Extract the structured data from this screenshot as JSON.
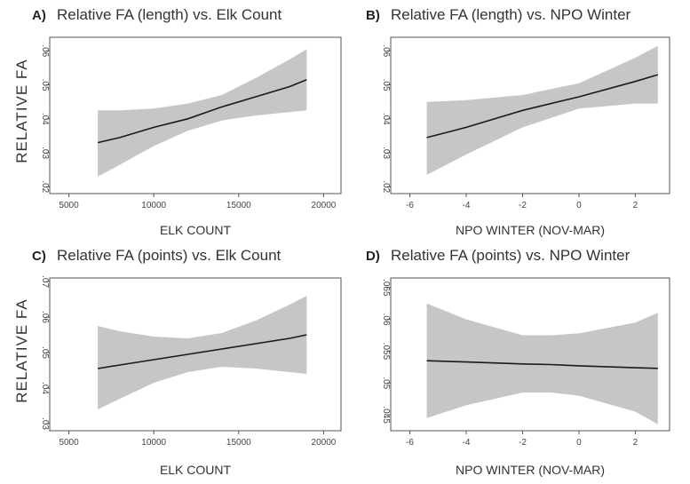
{
  "colors": {
    "band": "#c6c6c6",
    "line": "#1a1a1a",
    "frame": "#555555"
  },
  "y_axis_labels": [
    "RELATIVE   FA",
    "RELATIVE   FA"
  ],
  "chart_data": [
    {
      "type": "line",
      "panel": "A)",
      "title": "Relative FA (length) vs. Elk Count",
      "xlabel": "ELK COUNT",
      "xlim": [
        4500,
        20500
      ],
      "ylim": [
        0.018,
        0.064
      ],
      "xticks": [
        5000,
        10000,
        15000,
        20000
      ],
      "xtick_labels": [
        "5000",
        "10000",
        "15000",
        "20000"
      ],
      "yticks": [
        0.02,
        0.03,
        0.04,
        0.05,
        0.06
      ],
      "ytick_labels": [
        ".02",
        ".03",
        ".04",
        ".05",
        ".06"
      ],
      "series": [
        {
          "x": [
            6700,
            8000,
            10000,
            12000,
            14000,
            16000,
            18000,
            19000
          ],
          "fit": [
            0.033,
            0.0345,
            0.0375,
            0.04,
            0.0435,
            0.0465,
            0.0495,
            0.0515
          ],
          "lower": [
            0.023,
            0.0265,
            0.032,
            0.0365,
            0.0395,
            0.041,
            0.042,
            0.0425
          ],
          "upper": [
            0.0425,
            0.0425,
            0.043,
            0.0445,
            0.047,
            0.052,
            0.0575,
            0.0605
          ]
        }
      ],
      "grid": false
    },
    {
      "type": "line",
      "panel": "B)",
      "title": "Relative FA (length) vs. NPO Winter",
      "xlabel": "NPO WINTER (NOV-MAR)",
      "xlim": [
        -6.3,
        2.9
      ],
      "ylim": [
        0.018,
        0.064
      ],
      "xticks": [
        -6,
        -4,
        -2,
        0,
        2
      ],
      "xtick_labels": [
        "-6",
        "-4",
        "-2",
        "0",
        "2"
      ],
      "yticks": [
        0.02,
        0.03,
        0.04,
        0.05,
        0.06
      ],
      "ytick_labels": [
        ".02",
        ".03",
        ".04",
        ".05",
        ".06"
      ],
      "series": [
        {
          "x": [
            -5.4,
            -4,
            -2,
            0,
            2,
            2.8
          ],
          "fit": [
            0.0345,
            0.0375,
            0.0425,
            0.0465,
            0.051,
            0.053
          ],
          "lower": [
            0.0235,
            0.0295,
            0.0375,
            0.043,
            0.0445,
            0.0445
          ],
          "upper": [
            0.045,
            0.0455,
            0.047,
            0.0505,
            0.058,
            0.0615
          ]
        }
      ],
      "grid": false
    },
    {
      "type": "line",
      "panel": "C)",
      "title": "Relative FA (points) vs. Elk Count",
      "xlabel": "ELK COUNT",
      "xlim": [
        4500,
        20500
      ],
      "ylim": [
        0.028,
        0.071
      ],
      "xticks": [
        5000,
        10000,
        15000,
        20000
      ],
      "xtick_labels": [
        "5000",
        "10000",
        "15000",
        "20000"
      ],
      "yticks": [
        0.03,
        0.04,
        0.05,
        0.06,
        0.07
      ],
      "ytick_labels": [
        ".03",
        ".04",
        ".05",
        ".06",
        ".07"
      ],
      "series": [
        {
          "x": [
            6700,
            8000,
            10000,
            12000,
            14000,
            16000,
            18000,
            19000
          ],
          "fit": [
            0.0455,
            0.0465,
            0.048,
            0.0495,
            0.051,
            0.0525,
            0.054,
            0.055
          ],
          "lower": [
            0.034,
            0.037,
            0.0415,
            0.0445,
            0.046,
            0.0455,
            0.0445,
            0.044
          ],
          "upper": [
            0.0575,
            0.056,
            0.0545,
            0.054,
            0.0555,
            0.059,
            0.0635,
            0.066
          ]
        }
      ],
      "grid": false
    },
    {
      "type": "line",
      "panel": "D)",
      "title": "Relative FA (points) vs. NPO Winter",
      "xlabel": "NPO WINTER (NOV-MAR)",
      "xlim": [
        -6.3,
        2.9
      ],
      "ylim": [
        0.0425,
        0.0665
      ],
      "xticks": [
        -6,
        -4,
        -2,
        0,
        2
      ],
      "xtick_labels": [
        "-6",
        "-4",
        "-2",
        "0",
        "2"
      ],
      "yticks": [
        0.045,
        0.05,
        0.055,
        0.06,
        0.065
      ],
      "ytick_labels": [
        ".045",
        ".05",
        ".055",
        ".06",
        ".065"
      ],
      "series": [
        {
          "x": [
            -5.4,
            -4,
            -2,
            -1,
            0,
            2,
            2.8
          ],
          "fit": [
            0.0535,
            0.0533,
            0.053,
            0.0529,
            0.0527,
            0.0524,
            0.0523
          ],
          "lower": [
            0.0445,
            0.0465,
            0.0485,
            0.0485,
            0.048,
            0.0455,
            0.0435
          ],
          "upper": [
            0.0625,
            0.06,
            0.0575,
            0.0575,
            0.0578,
            0.0595,
            0.061
          ]
        }
      ],
      "grid": false
    }
  ]
}
